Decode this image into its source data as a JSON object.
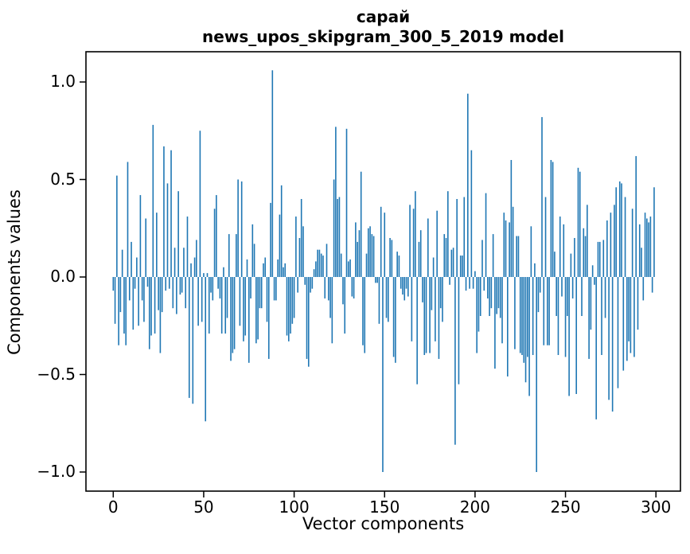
{
  "chart_data": {
    "type": "bar",
    "title_line1": "сарай",
    "title_line2": "news_upos_skipgram_300_5_2019 model",
    "xlabel": "Vector components",
    "ylabel": "Components values",
    "bar_color": "#1f77b4",
    "axis_color": "#000000",
    "grid": false,
    "legend": null,
    "n_components": 300,
    "xticks": [
      0,
      50,
      100,
      150,
      200,
      250,
      300
    ],
    "yticks": [
      1.0,
      0.5,
      0.0,
      -0.5,
      -1.0
    ],
    "ytick_labels": [
      "1.0",
      "0.5",
      "0.0",
      "−0.5",
      "−1.0"
    ],
    "xlim": [
      -15,
      314
    ],
    "ylim": [
      -1.1,
      1.16
    ],
    "values": [
      -0.07,
      -0.24,
      0.52,
      -0.35,
      -0.18,
      0.14,
      -0.29,
      -0.35,
      0.59,
      -0.12,
      0.18,
      -0.27,
      -0.06,
      0.1,
      -0.25,
      0.42,
      -0.12,
      -0.23,
      0.3,
      -0.05,
      -0.37,
      -0.3,
      0.78,
      -0.29,
      0.33,
      -0.17,
      -0.39,
      -0.18,
      0.67,
      -0.07,
      0.48,
      -0.06,
      0.65,
      -0.16,
      0.15,
      -0.19,
      0.44,
      -0.09,
      -0.08,
      0.15,
      -0.16,
      0.31,
      -0.62,
      0.07,
      -0.65,
      0.1,
      0.19,
      -0.25,
      0.75,
      -0.23,
      0.02,
      -0.74,
      0.02,
      -0.29,
      -0.08,
      -0.12,
      0.35,
      0.42,
      -0.06,
      -0.11,
      -0.29,
      0.05,
      -0.29,
      -0.21,
      0.22,
      -0.43,
      -0.39,
      -0.37,
      0.22,
      0.5,
      -0.25,
      0.49,
      -0.33,
      -0.3,
      0.09,
      -0.44,
      -0.11,
      0.27,
      0.17,
      -0.34,
      -0.32,
      -0.16,
      -0.16,
      0.07,
      0.1,
      -0.23,
      -0.42,
      0.38,
      1.06,
      -0.12,
      -0.12,
      0.09,
      0.32,
      0.47,
      0.05,
      0.07,
      -0.3,
      -0.33,
      -0.29,
      -0.24,
      -0.21,
      0.31,
      -0.08,
      0.2,
      0.4,
      0.26,
      -0.04,
      -0.42,
      -0.46,
      -0.08,
      -0.06,
      0.04,
      0.08,
      0.14,
      0.14,
      0.12,
      0.11,
      -0.11,
      0.17,
      -0.12,
      -0.21,
      -0.34,
      0.5,
      0.77,
      0.4,
      0.41,
      0.12,
      -0.14,
      -0.29,
      0.76,
      0.08,
      0.09,
      -0.1,
      -0.11,
      0.28,
      0.18,
      0.24,
      0.54,
      -0.35,
      -0.39,
      0.12,
      0.25,
      0.26,
      0.22,
      0.21,
      -0.03,
      -0.03,
      -0.24,
      0.36,
      -1.0,
      0.33,
      -0.21,
      -0.23,
      0.2,
      0.19,
      -0.41,
      -0.44,
      0.13,
      0.11,
      -0.06,
      -0.09,
      -0.12,
      -0.06,
      -0.1,
      0.37,
      -0.33,
      0.35,
      0.44,
      -0.55,
      0.18,
      0.24,
      -0.13,
      -0.4,
      -0.39,
      0.3,
      -0.39,
      -0.17,
      0.1,
      -0.33,
      0.34,
      -0.42,
      -0.16,
      -0.23,
      0.22,
      0.2,
      0.44,
      -0.04,
      0.14,
      0.15,
      -0.86,
      0.4,
      -0.55,
      0.11,
      0.11,
      0.41,
      -0.07,
      0.94,
      -0.06,
      0.65,
      -0.06,
      0.03,
      -0.39,
      -0.28,
      -0.2,
      0.19,
      -0.07,
      0.43,
      -0.11,
      -0.2,
      -0.16,
      0.22,
      -0.47,
      -0.19,
      -0.16,
      -0.21,
      -0.34,
      0.33,
      0.29,
      -0.51,
      0.28,
      0.6,
      0.36,
      -0.37,
      0.21,
      0.21,
      -0.39,
      -0.4,
      -0.44,
      -0.54,
      -0.41,
      -0.61,
      0.26,
      -0.4,
      0.07,
      -1.0,
      -0.18,
      -0.08,
      0.82,
      -0.35,
      0.41,
      -0.35,
      -0.35,
      0.6,
      0.59,
      0.13,
      -0.2,
      -0.4,
      0.31,
      -0.1,
      0.27,
      -0.41,
      -0.2,
      -0.61,
      0.12,
      -0.11,
      0.2,
      -0.6,
      0.56,
      0.54,
      -0.2,
      0.25,
      0.21,
      0.37,
      -0.42,
      -0.27,
      0.06,
      -0.04,
      -0.73,
      0.18,
      0.18,
      -0.4,
      0.19,
      -0.21,
      0.29,
      -0.63,
      0.33,
      -0.69,
      0.37,
      0.46,
      -0.57,
      0.49,
      0.48,
      -0.48,
      0.41,
      -0.43,
      -0.33,
      -0.39,
      0.35,
      -0.41,
      0.62,
      -0.27,
      0.27,
      0.15,
      -0.12,
      0.33,
      0.3,
      0.28,
      0.31,
      -0.08,
      0.46
    ]
  }
}
